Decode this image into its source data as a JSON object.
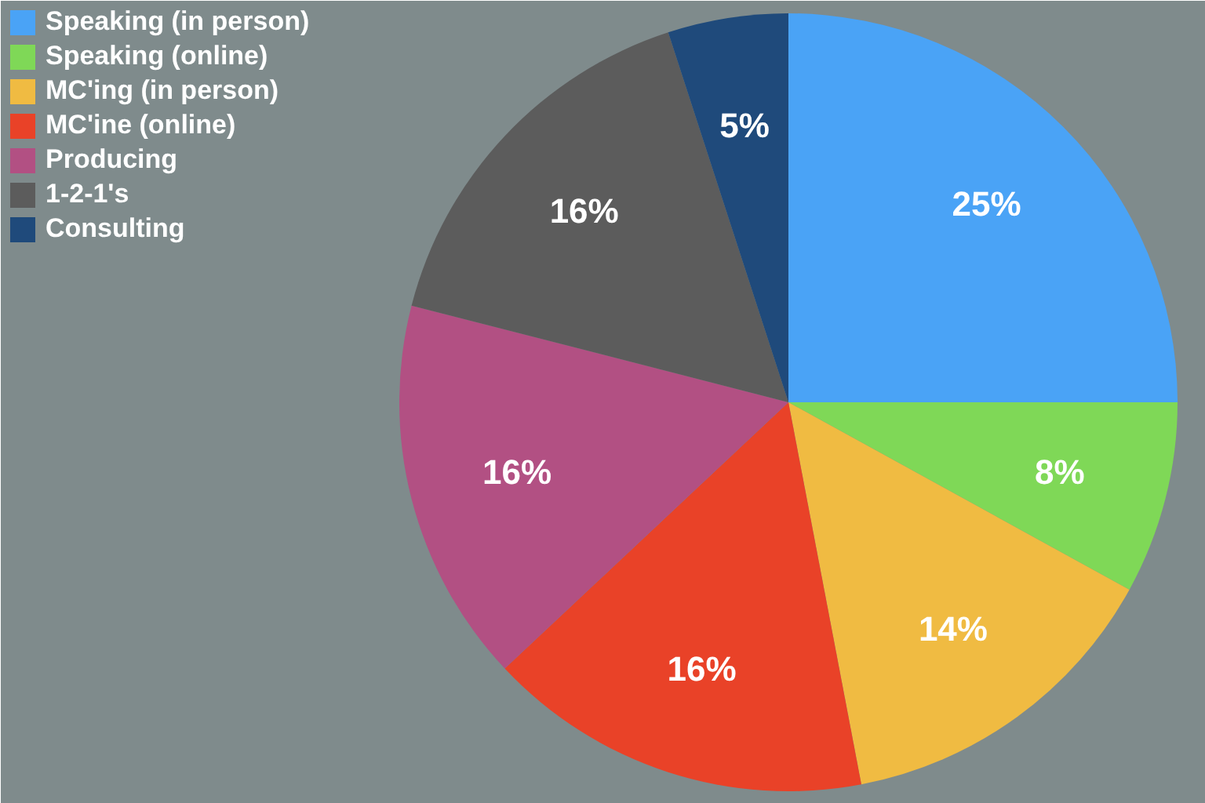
{
  "chart_data": {
    "type": "pie",
    "categories": [
      "Speaking (in person)",
      "Speaking (online)",
      "MC'ing (in person)",
      "MC'ine (online)",
      "Producing",
      "1-2-1's",
      "Consulting"
    ],
    "values": [
      25,
      8,
      14,
      16,
      16,
      16,
      5
    ],
    "colors": [
      "#4aa3f6",
      "#7fd857",
      "#f0bb42",
      "#e94228",
      "#b25083",
      "#5c5c5c",
      "#1f4a7b"
    ],
    "value_labels": [
      "25%",
      "8%",
      "14%",
      "16%",
      "16%",
      "16%",
      "5%"
    ],
    "legend": "top left"
  }
}
